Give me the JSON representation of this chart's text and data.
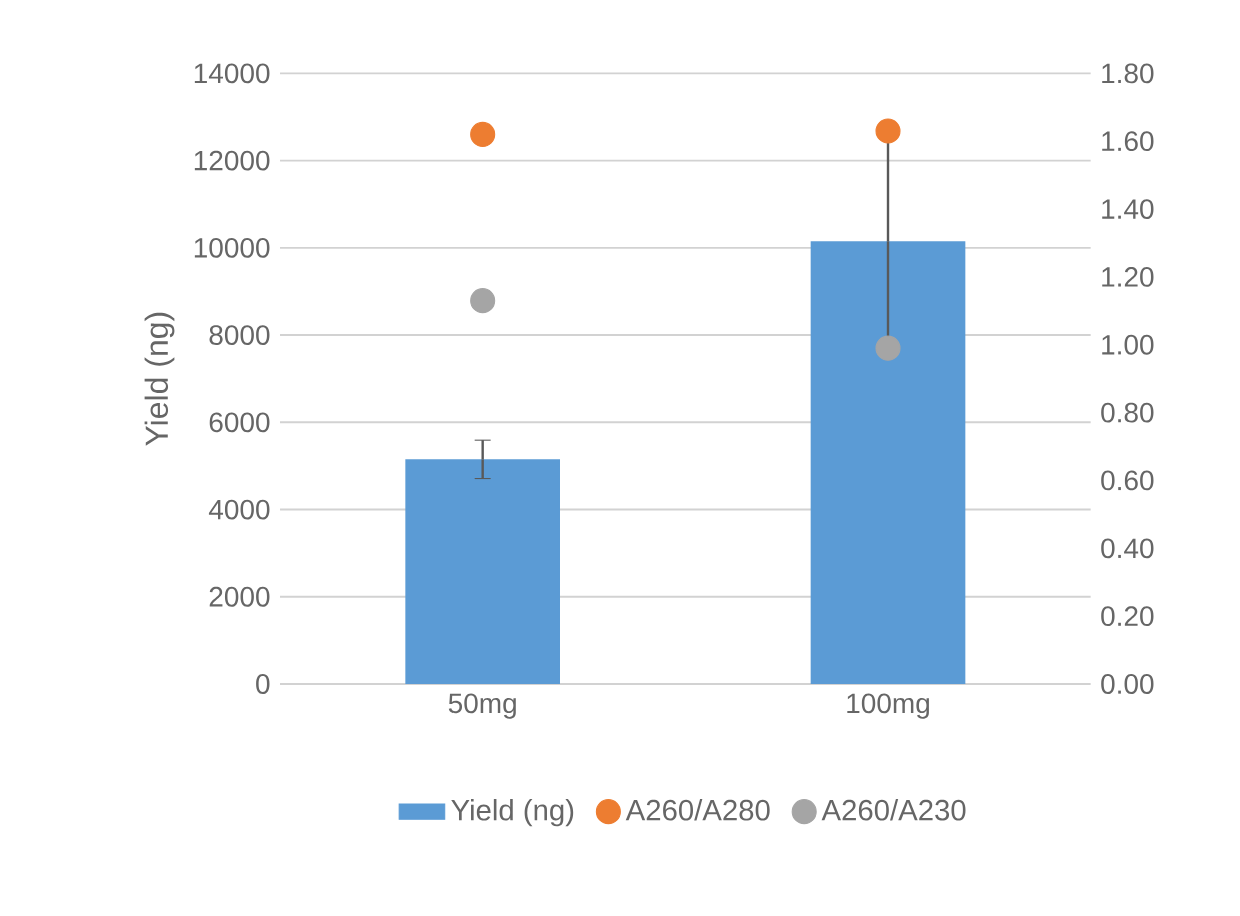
{
  "chart_data": {
    "type": "bar",
    "ylabel": "Yield (ng)",
    "categories": [
      "50mg",
      "100mg"
    ],
    "series": [
      {
        "name": "Yield (ng)",
        "color": "#5b9bd5",
        "values": [
          5150,
          10150
        ],
        "errors": [
          440,
          2500
        ]
      },
      {
        "name": "A260/A280",
        "type": "scatter",
        "axis": "y2",
        "color": "#ed7d31",
        "values": [
          1.62,
          1.63
        ]
      },
      {
        "name": "A260/A230",
        "type": "scatter",
        "axis": "y2",
        "color": "#a5a5a5",
        "values": [
          1.13,
          0.99
        ]
      }
    ],
    "ylim": [
      0,
      14000
    ],
    "yticks": [
      0,
      2000,
      4000,
      6000,
      8000,
      10000,
      12000,
      14000
    ],
    "y2lim": [
      0,
      1.8
    ],
    "y2ticks": [
      {
        "value": 0,
        "label": "0.00"
      },
      {
        "value": 0.2,
        "label": "0.20"
      },
      {
        "value": 0.4,
        "label": "0.40"
      },
      {
        "value": 0.6,
        "label": "0.60"
      },
      {
        "value": 0.8,
        "label": "0.80"
      },
      {
        "value": 1.0,
        "label": "1.00"
      },
      {
        "value": 1.2,
        "label": "1.20"
      },
      {
        "value": 1.4,
        "label": "1.40"
      },
      {
        "value": 1.6,
        "label": "1.60"
      },
      {
        "value": 1.8,
        "label": "1.80"
      }
    ],
    "grid": "y",
    "legend": "bottom"
  }
}
